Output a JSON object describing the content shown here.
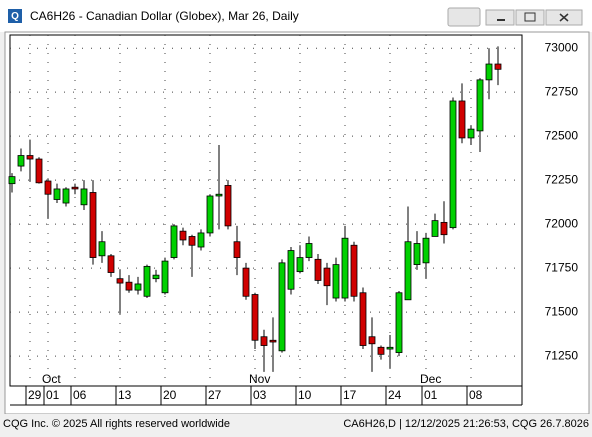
{
  "window": {
    "title": "CA6H26 - Canadian Dollar (Globex), Mar 26, Daily"
  },
  "chart_data": {
    "type": "candlestick",
    "categories": [
      null,
      null,
      "29",
      null,
      "01",
      null,
      null,
      "06",
      null,
      null,
      null,
      null,
      "13",
      null,
      null,
      null,
      null,
      "20",
      null,
      null,
      null,
      null,
      "27",
      null,
      null,
      null,
      null,
      "03",
      null,
      null,
      null,
      null,
      "10",
      null,
      null,
      null,
      null,
      "17",
      null,
      null,
      null,
      null,
      "24",
      null,
      null,
      null,
      "01",
      null,
      null,
      null,
      null,
      "08",
      null,
      null,
      null
    ],
    "months": [
      null,
      null,
      null,
      null,
      "Oct",
      null,
      null,
      null,
      null,
      null,
      null,
      null,
      null,
      null,
      null,
      null,
      null,
      null,
      null,
      null,
      null,
      null,
      null,
      null,
      null,
      null,
      null,
      "Nov",
      null,
      null,
      null,
      null,
      null,
      null,
      null,
      null,
      null,
      null,
      null,
      null,
      null,
      null,
      null,
      null,
      null,
      null,
      "Dec",
      null,
      null,
      null,
      null,
      null,
      null,
      null,
      null
    ],
    "open": [
      72230,
      72330,
      72390,
      72370,
      72245,
      72140,
      72120,
      72210,
      72110,
      72180,
      71820,
      71820,
      71690,
      71670,
      71625,
      71590,
      71690,
      71610,
      71810,
      71960,
      71930,
      71870,
      71950,
      72160,
      72220,
      71900,
      71750,
      71600,
      71360,
      71340,
      71280,
      71630,
      71730,
      71810,
      71800,
      71750,
      71580,
      71580,
      71880,
      71610,
      71360,
      71300,
      71290,
      71270,
      71570,
      71770,
      71780,
      71930,
      72010,
      71980,
      72700,
      72490,
      72530,
      72820,
      72910
    ],
    "high": [
      72290,
      72430,
      72480,
      72380,
      72260,
      72230,
      72210,
      72230,
      72250,
      72250,
      71960,
      71830,
      71740,
      71710,
      71700,
      71770,
      71740,
      71810,
      72000,
      71980,
      71940,
      71970,
      72170,
      72450,
      72250,
      71990,
      71780,
      71610,
      71400,
      71470,
      71800,
      71870,
      71880,
      71930,
      71830,
      71780,
      71810,
      71990,
      71900,
      71640,
      71470,
      71310,
      71370,
      71620,
      72100,
      71960,
      71950,
      72060,
      72130,
      72720,
      72800,
      72560,
      72830,
      73000,
      73010
    ],
    "low": [
      72180,
      72300,
      72240,
      72230,
      72030,
      72120,
      72100,
      72170,
      72080,
      71770,
      71780,
      71700,
      71490,
      71610,
      71600,
      71580,
      71670,
      71600,
      71800,
      71880,
      71700,
      71850,
      71930,
      71970,
      71970,
      71710,
      71570,
      71290,
      71160,
      71160,
      71270,
      71600,
      71720,
      71790,
      71660,
      71540,
      71560,
      71560,
      71560,
      71290,
      71160,
      71230,
      71180,
      71250,
      71570,
      71740,
      71690,
      71930,
      71890,
      71970,
      72460,
      72450,
      72410,
      72710,
      72790
    ],
    "close": [
      72270,
      72390,
      72370,
      72235,
      72170,
      72200,
      72200,
      72200,
      72200,
      71810,
      71900,
      71725,
      71665,
      71625,
      71660,
      71760,
      71710,
      71790,
      71990,
      71910,
      71880,
      71950,
      72160,
      72170,
      71990,
      71810,
      71590,
      71340,
      71310,
      71330,
      71780,
      71850,
      71810,
      71890,
      71680,
      71650,
      71770,
      71920,
      71590,
      71310,
      71320,
      71260,
      71300,
      71610,
      71900,
      71890,
      71920,
      72020,
      71940,
      72700,
      72490,
      72540,
      72820,
      72910,
      72880
    ],
    "ylim": [
      71080,
      73075
    ],
    "yticks": [
      71250,
      71500,
      71750,
      72000,
      72250,
      72500,
      72750,
      73000
    ],
    "grid": true,
    "up_color": "#00d000",
    "down_color": "#d00000"
  },
  "footer": {
    "left": "CQG Inc. © 2025 All rights reserved worldwide",
    "right": "CA6H26,D | 12/12/2025 21:26:53, CQG 26.7.8026"
  }
}
